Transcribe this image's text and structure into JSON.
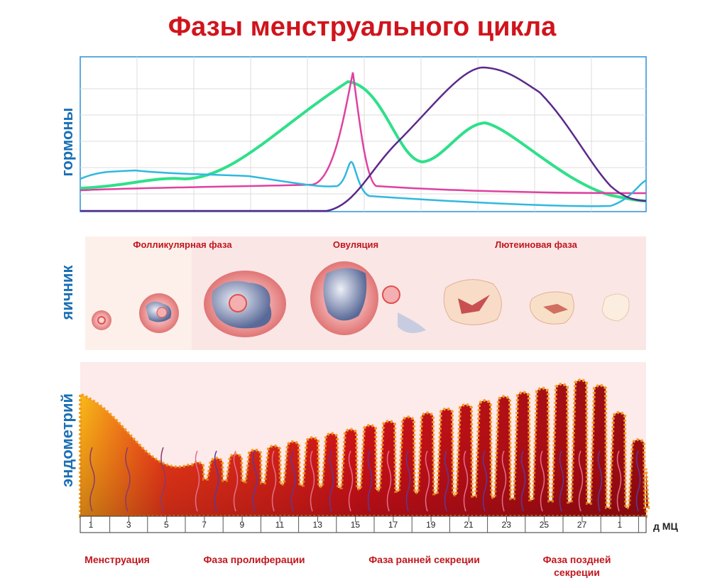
{
  "title": "Фазы менструального цикла",
  "panels": {
    "hormones": "гормоны",
    "ovary": "яичник",
    "endometrium": "эндометрий"
  },
  "ovary_phases": [
    "Фолликулярная фаза",
    "Овуляция",
    "Лютеиновая фаза"
  ],
  "days": [
    "1",
    "3",
    "5",
    "7",
    "9",
    "11",
    "13",
    "15",
    "17",
    "19",
    "21",
    "23",
    "25",
    "27",
    "1"
  ],
  "days_unit": "д МЦ",
  "cycle_phases": [
    "Менструация",
    "Фаза пролиферации",
    "Фаза ранней секреции",
    "Фаза поздней секреции"
  ]
}
